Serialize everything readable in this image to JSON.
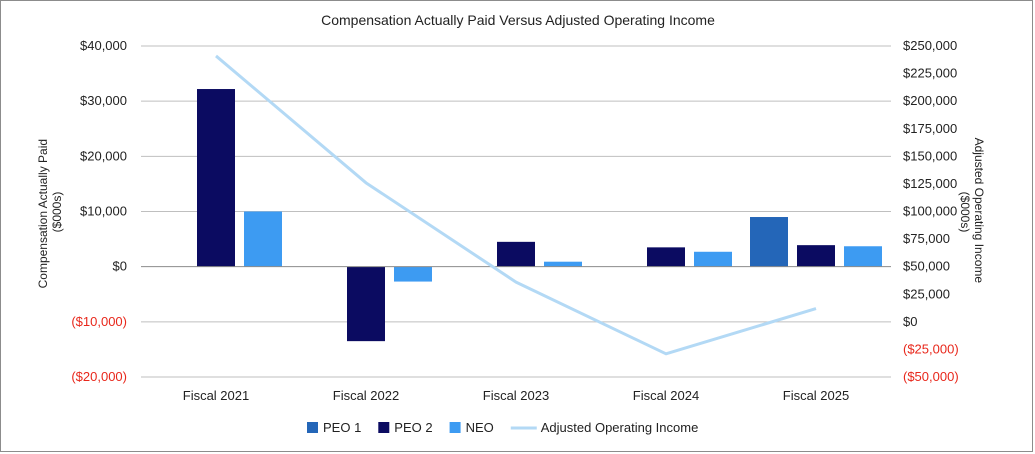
{
  "chart_data": {
    "type": "bar",
    "title": "Compensation Actually Paid Versus Adjusted Operating Income",
    "categories": [
      "Fiscal 2021",
      "Fiscal 2022",
      "Fiscal 2023",
      "Fiscal 2024",
      "Fiscal 2025"
    ],
    "series": [
      {
        "name": "PEO 1",
        "axis": "left",
        "color": "#2466b8",
        "values": [
          null,
          null,
          null,
          null,
          9000
        ]
      },
      {
        "name": "PEO 2",
        "axis": "left",
        "color": "#0b0b61",
        "values": [
          32200,
          -13500,
          4500,
          3500,
          3900
        ]
      },
      {
        "name": "NEO",
        "axis": "left",
        "color": "#3d9bf2",
        "values": [
          10000,
          -2700,
          900,
          2700,
          3700
        ]
      }
    ],
    "line_series": {
      "name": "Adjusted Operating Income",
      "axis": "right",
      "color": "#b3d9f5",
      "values": [
        241000,
        126000,
        36000,
        -29000,
        12000
      ]
    },
    "y_left": {
      "label": "Compensation Actually Paid ($000s)",
      "label_lines": [
        "Compensation Actually Paid",
        "($000s)"
      ],
      "range": [
        -20000,
        40000
      ],
      "ticks": [
        40000,
        30000,
        20000,
        10000,
        0,
        -10000,
        -20000
      ],
      "tick_labels": [
        "$40,000",
        "$30,000",
        "$20,000",
        "$10,000",
        "$0",
        "($10,000)",
        "($20,000)"
      ]
    },
    "y_right": {
      "label": "Adjusted Operating Income ($000s)",
      "label_lines": [
        "Adjusted Operating Income",
        "($000s)"
      ],
      "range": [
        -50000,
        250000
      ],
      "ticks": [
        250000,
        225000,
        200000,
        175000,
        150000,
        125000,
        100000,
        75000,
        50000,
        25000,
        0,
        -25000,
        -50000
      ],
      "tick_labels": [
        "$250,000",
        "$225,000",
        "$200,000",
        "$175,000",
        "$150,000",
        "$125,000",
        "$100,000",
        "$75,000",
        "$50,000",
        "$25,000",
        "$0",
        "($25,000)",
        "($50,000)"
      ]
    },
    "negative_label_color": "#e8271b",
    "grid": true,
    "legend": "bottom-center"
  }
}
